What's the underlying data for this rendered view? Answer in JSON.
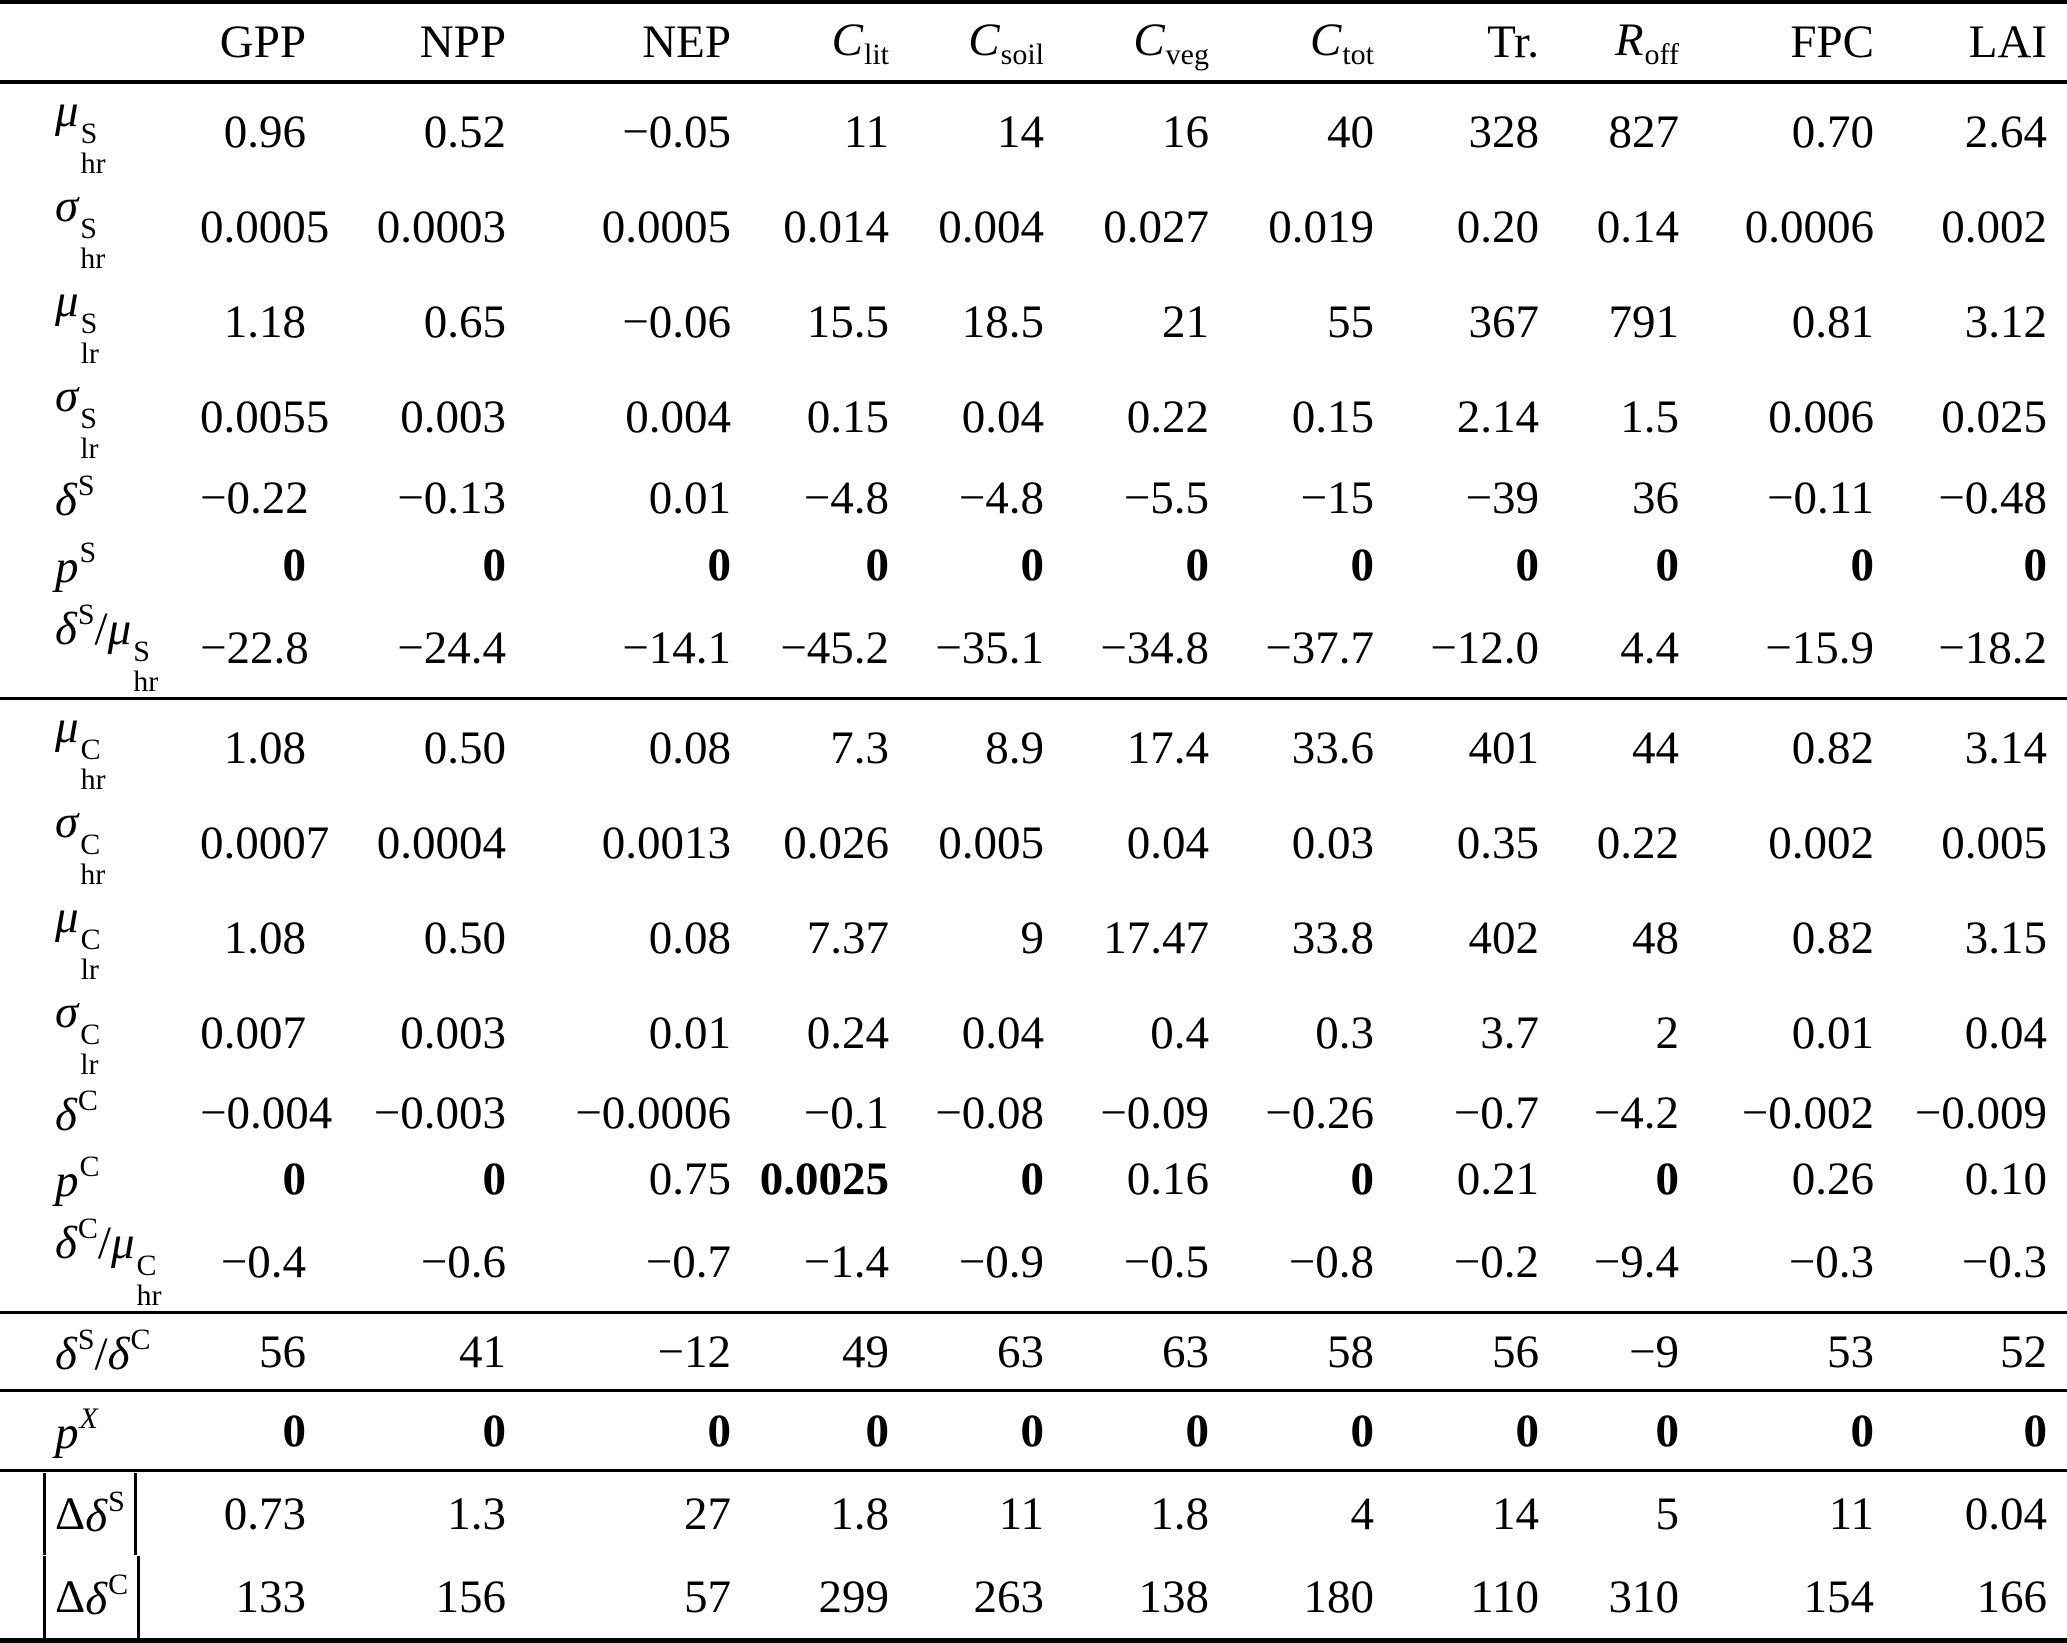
{
  "table": {
    "columns": [
      {
        "base": "GPP"
      },
      {
        "base": "NPP"
      },
      {
        "base": "NEP"
      },
      {
        "base": "C",
        "italic": true,
        "sub": "lit"
      },
      {
        "base": "C",
        "italic": true,
        "sub": "soil"
      },
      {
        "base": "C",
        "italic": true,
        "sub": "veg"
      },
      {
        "base": "C",
        "italic": true,
        "sub": "tot"
      },
      {
        "base": "Tr."
      },
      {
        "base": "R",
        "italic": true,
        "sub": "off"
      },
      {
        "base": "FPC"
      },
      {
        "base": "LAI"
      }
    ],
    "sections": [
      {
        "rows": [
          {
            "id": "mu-hr-S",
            "label": {
              "parts": [
                {
                  "base": "μ",
                  "italic": true,
                  "sup": "S",
                  "sub": "hr"
                }
              ]
            },
            "values": [
              "0.96",
              "0.52",
              "−0.05",
              "11",
              "14",
              "16",
              "40",
              "328",
              "827",
              "0.70",
              "2.64"
            ]
          },
          {
            "id": "sigma-hr-S",
            "label": {
              "parts": [
                {
                  "base": "σ",
                  "italic": true,
                  "sup": "S",
                  "sub": "hr"
                }
              ]
            },
            "values": [
              "0.0005",
              "0.0003",
              "0.0005",
              "0.014",
              "0.004",
              "0.027",
              "0.019",
              "0.20",
              "0.14",
              "0.0006",
              "0.002"
            ]
          },
          {
            "id": "mu-lr-S",
            "label": {
              "parts": [
                {
                  "base": "μ",
                  "italic": true,
                  "sup": "S",
                  "sub": "lr"
                }
              ]
            },
            "values": [
              "1.18",
              "0.65",
              "−0.06",
              "15.5",
              "18.5",
              "21",
              "55",
              "367",
              "791",
              "0.81",
              "3.12"
            ]
          },
          {
            "id": "sigma-lr-S",
            "label": {
              "parts": [
                {
                  "base": "σ",
                  "italic": true,
                  "sup": "S",
                  "sub": "lr"
                }
              ]
            },
            "values": [
              "0.0055",
              "0.003",
              "0.004",
              "0.15",
              "0.04",
              "0.22",
              "0.15",
              "2.14",
              "1.5",
              "0.006",
              "0.025"
            ]
          },
          {
            "id": "delta-S",
            "label": {
              "parts": [
                {
                  "base": "δ",
                  "italic": true,
                  "sup": "S"
                }
              ]
            },
            "values": [
              "−0.22",
              "−0.13",
              "0.01",
              "−4.8",
              "−4.8",
              "−5.5",
              "−15",
              "−39",
              "36",
              "−0.11",
              "−0.48"
            ]
          },
          {
            "id": "p-S",
            "label": {
              "parts": [
                {
                  "base": "p",
                  "italic": true,
                  "sup": "S"
                }
              ]
            },
            "bold": true,
            "values": [
              "0",
              "0",
              "0",
              "0",
              "0",
              "0",
              "0",
              "0",
              "0",
              "0",
              "0"
            ]
          },
          {
            "id": "delta-S-over-mu-hr-S",
            "label": {
              "parts": [
                {
                  "base": "δ",
                  "italic": true,
                  "sup": "S"
                },
                {
                  "text": "/"
                },
                {
                  "base": "μ",
                  "italic": true,
                  "sup": "S",
                  "sub": "hr"
                }
              ]
            },
            "values": [
              "−22.8",
              "−24.4",
              "−14.1",
              "−45.2",
              "−35.1",
              "−34.8",
              "−37.7",
              "−12.0",
              "4.4",
              "−15.9",
              "−18.2"
            ]
          }
        ]
      },
      {
        "rows": [
          {
            "id": "mu-hr-C",
            "label": {
              "parts": [
                {
                  "base": "μ",
                  "italic": true,
                  "sup": "C",
                  "sub": "hr"
                }
              ]
            },
            "values": [
              "1.08",
              "0.50",
              "0.08",
              "7.3",
              "8.9",
              "17.4",
              "33.6",
              "401",
              "44",
              "0.82",
              "3.14"
            ]
          },
          {
            "id": "sigma-hr-C",
            "label": {
              "parts": [
                {
                  "base": "σ",
                  "italic": true,
                  "sup": "C",
                  "sub": "hr"
                }
              ]
            },
            "values": [
              "0.0007",
              "0.0004",
              "0.0013",
              "0.026",
              "0.005",
              "0.04",
              "0.03",
              "0.35",
              "0.22",
              "0.002",
              "0.005"
            ]
          },
          {
            "id": "mu-lr-C",
            "label": {
              "parts": [
                {
                  "base": "μ",
                  "italic": true,
                  "sup": "C",
                  "sub": "lr"
                }
              ]
            },
            "values": [
              "1.08",
              "0.50",
              "0.08",
              "7.37",
              "9",
              "17.47",
              "33.8",
              "402",
              "48",
              "0.82",
              "3.15"
            ]
          },
          {
            "id": "sigma-lr-C",
            "label": {
              "parts": [
                {
                  "base": "σ",
                  "italic": true,
                  "sup": "C",
                  "sub": "lr"
                }
              ]
            },
            "values": [
              "0.007",
              "0.003",
              "0.01",
              "0.24",
              "0.04",
              "0.4",
              "0.3",
              "3.7",
              "2",
              "0.01",
              "0.04"
            ]
          },
          {
            "id": "delta-C",
            "label": {
              "parts": [
                {
                  "base": "δ",
                  "italic": true,
                  "sup": "C"
                }
              ]
            },
            "values": [
              "−0.004",
              "−0.003",
              "−0.0006",
              "−0.1",
              "−0.08",
              "−0.09",
              "−0.26",
              "−0.7",
              "−4.2",
              "−0.002",
              "−0.009"
            ]
          },
          {
            "id": "p-C",
            "label": {
              "parts": [
                {
                  "base": "p",
                  "italic": true,
                  "sup": "C"
                }
              ]
            },
            "bold": [
              0,
              1,
              3,
              4,
              6,
              8
            ],
            "values": [
              "0",
              "0",
              "0.75",
              "0.0025",
              "0",
              "0.16",
              "0",
              "0.21",
              "0",
              "0.26",
              "0.10"
            ]
          },
          {
            "id": "delta-C-over-mu-hr-C",
            "label": {
              "parts": [
                {
                  "base": "δ",
                  "italic": true,
                  "sup": "C"
                },
                {
                  "text": "/"
                },
                {
                  "base": "μ",
                  "italic": true,
                  "sup": "C",
                  "sub": "hr"
                }
              ]
            },
            "values": [
              "−0.4",
              "−0.6",
              "−0.7",
              "−1.4",
              "−0.9",
              "−0.5",
              "−0.8",
              "−0.2",
              "−9.4",
              "−0.3",
              "−0.3"
            ]
          }
        ]
      },
      {
        "rows": [
          {
            "id": "delta-S-over-delta-C",
            "label": {
              "parts": [
                {
                  "base": "δ",
                  "italic": true,
                  "sup": "S"
                },
                {
                  "text": "/"
                },
                {
                  "base": "δ",
                  "italic": true,
                  "sup": "C"
                }
              ]
            },
            "values": [
              "56",
              "41",
              "−12",
              "49",
              "63",
              "63",
              "58",
              "56",
              "−9",
              "53",
              "52"
            ]
          }
        ]
      },
      {
        "rows": [
          {
            "id": "p-X",
            "label": {
              "parts": [
                {
                  "base": "p",
                  "italic": true,
                  "sup": "X",
                  "sup_italic": true
                }
              ]
            },
            "bold": true,
            "values": [
              "0",
              "0",
              "0",
              "0",
              "0",
              "0",
              "0",
              "0",
              "0",
              "0",
              "0"
            ]
          }
        ]
      },
      {
        "rows": [
          {
            "id": "abs-delta-delta-S",
            "label": {
              "abs": true,
              "parts": [
                {
                  "base": "Δ"
                },
                {
                  "base": "δ",
                  "italic": true,
                  "sup": "S"
                }
              ]
            },
            "values": [
              "0.73",
              "1.3",
              "27",
              "1.8",
              "11",
              "1.8",
              "4",
              "14",
              "5",
              "11",
              "0.04"
            ]
          },
          {
            "id": "abs-delta-delta-C",
            "label": {
              "abs": true,
              "parts": [
                {
                  "base": "Δ"
                },
                {
                  "base": "δ",
                  "italic": true,
                  "sup": "C"
                }
              ]
            },
            "values": [
              "133",
              "156",
              "57",
              "299",
              "263",
              "138",
              "180",
              "110",
              "310",
              "154",
              "166"
            ]
          }
        ]
      }
    ]
  }
}
